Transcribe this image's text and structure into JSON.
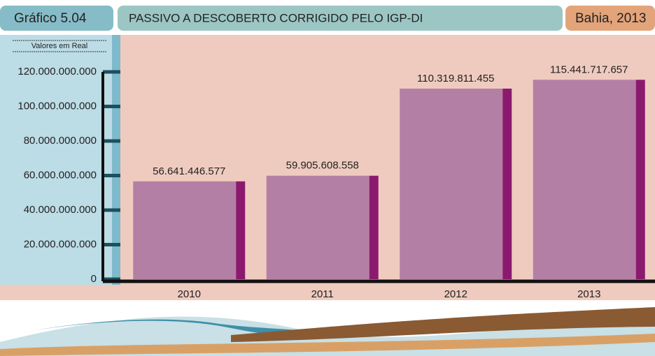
{
  "chart_data": {
    "type": "bar",
    "label": "Gráfico 5.04",
    "title": "PASSIVO A DESCOBERTO CORRIGIDO PELO IGP-DI",
    "subtitle": "Bahia, 2013",
    "ylabel": "Valores em Real",
    "categories": [
      "2010",
      "2011",
      "2012",
      "2013"
    ],
    "values": [
      56641446577,
      59905608558,
      110319811455,
      115441717657
    ],
    "value_labels": [
      "56.641.446.577",
      "59.905.608.558",
      "110.319.811.455",
      "115.441.717.657"
    ],
    "color": "#b47fa4",
    "edge_color": "#8b1a6f",
    "ylim": [
      0,
      120000000000
    ],
    "yticks": [
      0,
      {
        "value": 20000000000,
        "label": "20.000.000.000"
      },
      {
        "value": 40000000000,
        "label": "40.000.000.000"
      },
      {
        "value": 60000000000,
        "label": "60.000.000.000"
      },
      {
        "value": 80000000000,
        "label": "80.000.000.000"
      },
      {
        "value": 100000000000,
        "label": "100.000.000.000"
      },
      {
        "value": 120000000000,
        "label": "120.000.000.000"
      }
    ]
  }
}
